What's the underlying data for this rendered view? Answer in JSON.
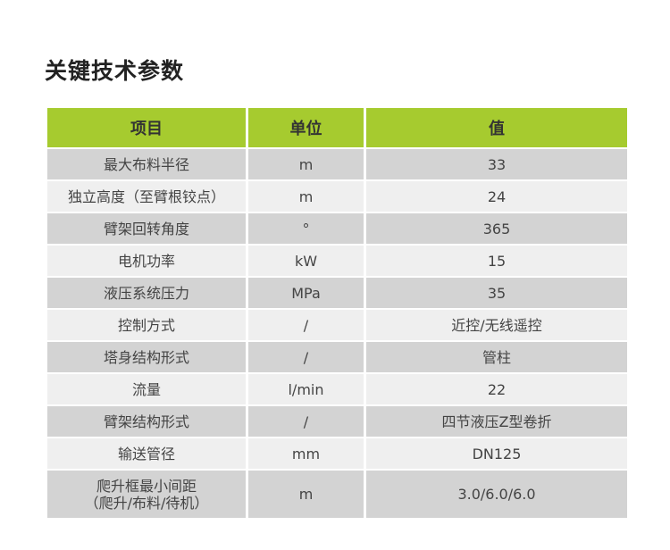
{
  "title": "关键技术参数",
  "table": {
    "headers": [
      "项目",
      "单位",
      "值"
    ],
    "rows": [
      [
        "最大布料半径",
        "m",
        "33"
      ],
      [
        "独立高度（至臂根铰点）",
        "m",
        "24"
      ],
      [
        "臂架回转角度",
        "°",
        "365"
      ],
      [
        "电机功率",
        "kW",
        "15"
      ],
      [
        "液压系统压力",
        "MPa",
        "35"
      ],
      [
        "控制方式",
        "/",
        "近控/无线遥控"
      ],
      [
        "塔身结构形式",
        "/",
        "管柱"
      ],
      [
        "流量",
        "l/min",
        "22"
      ],
      [
        "臂架结构形式",
        "/",
        "四节液压Z型卷折"
      ],
      [
        "输送管径",
        "mm",
        "DN125"
      ],
      [
        "爬升框最小间距\n（爬升/布料/待机）",
        "m",
        "3.0/6.0/6.0"
      ]
    ]
  },
  "colors": {
    "header": "#a6cb2f",
    "row_dark": "#d3d3d3",
    "row_light": "#efefef"
  }
}
